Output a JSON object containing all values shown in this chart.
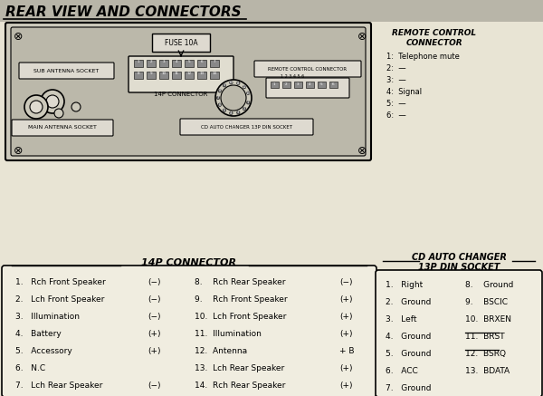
{
  "title": "REAR VIEW AND CONNECTORS",
  "bg_color": "#e8e4d4",
  "remote_control": {
    "title_line1": "REMOTE CONTROL",
    "title_line2": "CONNECTOR",
    "items": [
      "1:  Telephone mute",
      "2:  —",
      "3:  —",
      "4:  Signal",
      "5:  —",
      "6:  —"
    ]
  },
  "connector_14p": {
    "title": "14P CONNECTOR",
    "left_col": [
      "1.   Rch Front Speaker",
      "2.   Lch Front Speaker",
      "3.   Illumination",
      "4.   Battery",
      "5.   Accessory",
      "6.   N.C",
      "7.   Lch Rear Speaker"
    ],
    "left_sign": [
      "(−)",
      "(−)",
      "(−)",
      "(+)",
      "(+)",
      "",
      "(−)"
    ],
    "right_col": [
      "8.    Rch Rear Speaker",
      "9.    Rch Front Speaker",
      "10.  Lch Front Speaker",
      "11.  Illumination",
      "12.  Antenna",
      "13.  Lch Rear Speaker",
      "14.  Rch Rear Speaker"
    ],
    "right_sign": [
      "(−)",
      "(+)",
      "(+)",
      "(+)",
      "+ B",
      "(+)",
      "(+)"
    ]
  },
  "connector_13p": {
    "title_line1": "CD AUTO CHANGER",
    "title_line2": "13P DIN SOCKET",
    "left_col": [
      "1.   Right",
      "2.   Ground",
      "3.   Left",
      "4.   Ground",
      "5.   Ground",
      "6.   ACC",
      "7.   Ground"
    ],
    "right_col": [
      "8.    Ground",
      "9.    BSCIC",
      "10.  BRXEN",
      "11.  BRST",
      "12.  BSRQ",
      "13.  BDATA",
      ""
    ],
    "overline_indices": [
      3,
      4
    ]
  }
}
